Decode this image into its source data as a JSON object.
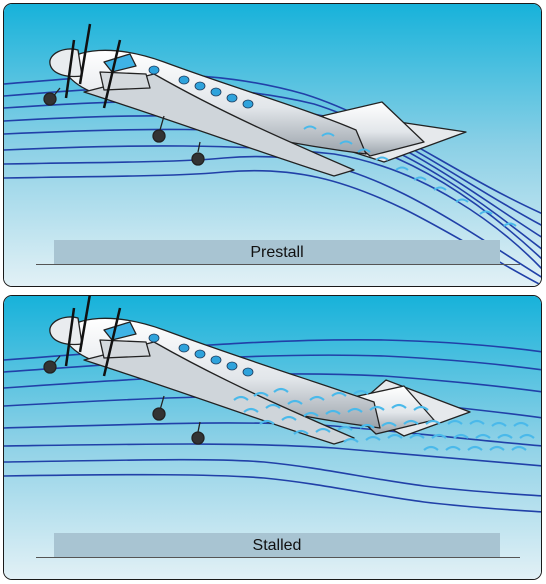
{
  "panels": [
    {
      "caption": "Prestall",
      "state": "attached airflow"
    },
    {
      "caption": "Stalled",
      "state": "separated turbulent airflow"
    }
  ],
  "colors": {
    "sky_top": "#17b2da",
    "sky_bottom": "#e3f1f6",
    "streamline": "#2140a8",
    "turbulence": "#4ab9ea",
    "caption_bar": "#a8c4d2"
  }
}
